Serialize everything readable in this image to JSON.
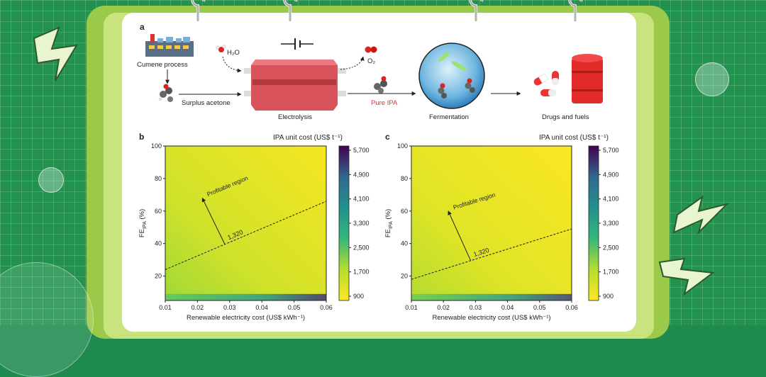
{
  "panel_a": {
    "letter": "a",
    "cumene_label": "Cumene process",
    "water_label": "H₂O",
    "oxygen_label": "O₂",
    "surplus_label": "Surplus acetone",
    "electrolysis_label": "Electrolysis",
    "pure_ipa_label": "Pure IPA",
    "fermentation_label": "Fermentation",
    "drugs_label": "Drugs and fuels"
  },
  "colors": {
    "pure_ipa": "#e0312a",
    "viridis_high": "#440154",
    "viridis_low": "#fde725",
    "background_green": "#23924f"
  },
  "chart_data": [
    {
      "type": "heatmap",
      "panel": "b",
      "title": "IPA unit cost (US$ t⁻¹)",
      "xlabel": "Renewable electricity cost (US$ kWh⁻¹)",
      "ylabel": "FE_IPA (%)",
      "xlim": [
        0.01,
        0.06
      ],
      "ylim": [
        5,
        100
      ],
      "x_ticks": [
        "0.01",
        "0.02",
        "0.03",
        "0.04",
        "0.05",
        "0.06"
      ],
      "y_ticks": [
        "20",
        "40",
        "60",
        "80",
        "100"
      ],
      "colorbar_ticks": [
        "5,700",
        "4,900",
        "4,100",
        "3,300",
        "2,500",
        "1,700",
        "900"
      ],
      "colorbar_range": [
        900,
        5700
      ],
      "contour_label": "1,320",
      "contour_points": [
        [
          0.01,
          24
        ],
        [
          0.06,
          66
        ]
      ],
      "annotation": "Profitable region"
    },
    {
      "type": "heatmap",
      "panel": "c",
      "title": "IPA unit cost (US$ t⁻¹)",
      "xlabel": "Renewable electricity cost (US$ kWh⁻¹)",
      "ylabel": "FE_IPA (%)",
      "xlim": [
        0.01,
        0.06
      ],
      "ylim": [
        5,
        100
      ],
      "x_ticks": [
        "0.01",
        "0.02",
        "0.03",
        "0.04",
        "0.05",
        "0.06"
      ],
      "y_ticks": [
        "20",
        "40",
        "60",
        "80",
        "100"
      ],
      "colorbar_ticks": [
        "5,700",
        "4,900",
        "4,100",
        "3,300",
        "2,500",
        "1,700",
        "900"
      ],
      "colorbar_range": [
        900,
        5700
      ],
      "contour_label": "1,320",
      "contour_points": [
        [
          0.01,
          18
        ],
        [
          0.06,
          49
        ]
      ],
      "annotation": "Profitable region"
    }
  ]
}
